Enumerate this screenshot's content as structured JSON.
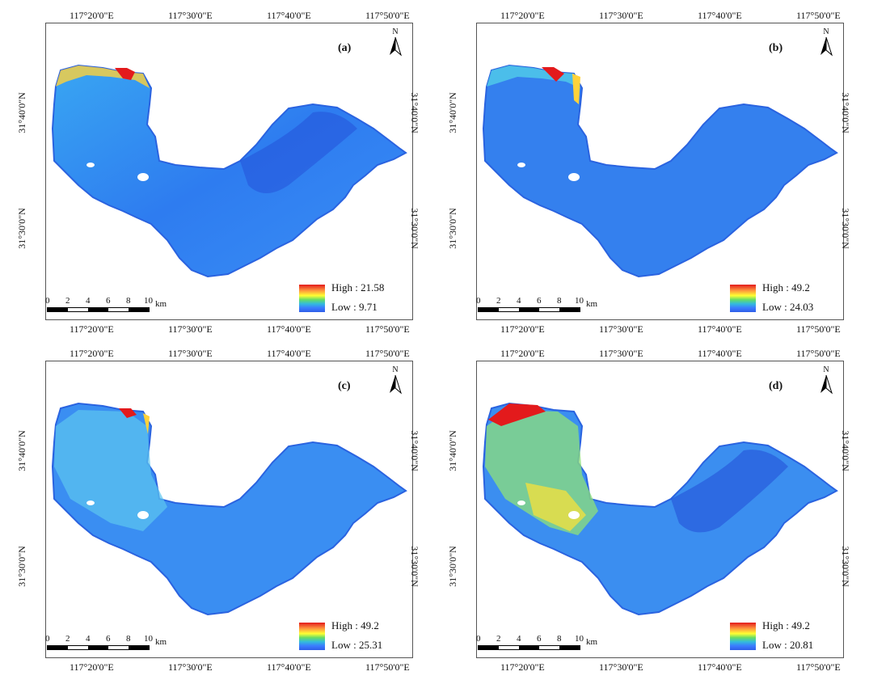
{
  "panels": [
    {
      "label": "(a)",
      "legend": {
        "high": "High : 21.58",
        "low": "Low : 9.71"
      },
      "variant": "a",
      "scale_bar": true
    },
    {
      "label": "(b)",
      "legend": {
        "high": "High : 49.2",
        "low": "Low : 24.03"
      },
      "variant": "b",
      "scale_bar": true
    },
    {
      "label": "(c)",
      "legend": {
        "high": "High : 49.2",
        "low": "Low : 25.31"
      },
      "variant": "c",
      "scale_bar": true
    },
    {
      "label": "(d)",
      "legend": {
        "high": "High : 49.2",
        "low": "Low : 20.81"
      },
      "variant": "d",
      "scale_bar": true
    }
  ],
  "longitude_ticks": [
    "117°20'0\"E",
    "117°30'0\"E",
    "117°40'0\"E",
    "117°50'0\"E"
  ],
  "latitude_ticks": [
    "31°40'0\"N",
    "31°30'0\"N"
  ],
  "north_arrow": {
    "text": "N",
    "icon": "north-arrow-icon"
  },
  "scale": {
    "numbers": [
      "0",
      "2",
      "4",
      "6",
      "8",
      "10"
    ],
    "unit": "km"
  },
  "colors": {
    "high": "#e31a1c",
    "mid_high": "#ffff33",
    "mid": "#66dd66",
    "low": "#2f5ee8",
    "frame": "#555555"
  }
}
